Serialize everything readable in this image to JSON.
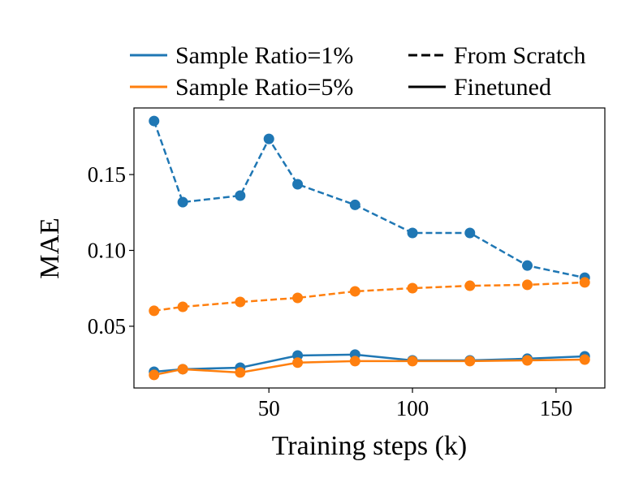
{
  "chart_data": {
    "type": "line",
    "x_label": "Training steps (k)",
    "y_label": "MAE",
    "xlim": [
      3,
      167
    ],
    "ylim": [
      0.0093,
      0.1939
    ],
    "xticks": [
      50,
      100,
      150
    ],
    "yticks": [
      {
        "value": 0.05,
        "label": "0.05"
      },
      {
        "value": 0.1,
        "label": "0.10"
      },
      {
        "value": 0.15,
        "label": "0.15"
      }
    ],
    "legend": [
      {
        "label": "Sample Ratio=1%",
        "color": "#1f77b4",
        "style": "solid"
      },
      {
        "label": "Sample Ratio=5%",
        "color": "#ff7f0e",
        "style": "solid"
      },
      {
        "label": "From Scratch",
        "color": "#000000",
        "style": "dashed"
      },
      {
        "label": "Finetuned",
        "color": "#000000",
        "style": "solid"
      }
    ],
    "series": [
      {
        "color": "#1f77b4",
        "style": "dashed",
        "x": [
          10,
          20,
          40,
          50,
          60,
          80,
          100,
          120,
          140,
          160
        ],
        "values": [
          0.1853,
          0.1318,
          0.1361,
          0.1735,
          0.1436,
          0.13,
          0.1115,
          0.1115,
          0.09,
          0.082
        ]
      },
      {
        "color": "#ff7f0e",
        "style": "dashed",
        "x": [
          10,
          20,
          40,
          60,
          80,
          100,
          120,
          140,
          160
        ],
        "values": [
          0.0602,
          0.0628,
          0.066,
          0.0687,
          0.073,
          0.0751,
          0.0767,
          0.0773,
          0.0789
        ]
      },
      {
        "color": "#1f77b4",
        "style": "solid",
        "x": [
          10,
          20,
          40,
          60,
          80,
          100,
          120,
          140,
          160
        ],
        "values": [
          0.02,
          0.0217,
          0.0227,
          0.0307,
          0.0313,
          0.0275,
          0.0275,
          0.0286,
          0.0302
        ]
      },
      {
        "color": "#ff7f0e",
        "style": "solid",
        "x": [
          10,
          20,
          40,
          60,
          80,
          100,
          120,
          140,
          160
        ],
        "values": [
          0.0179,
          0.0217,
          0.0195,
          0.026,
          0.027,
          0.027,
          0.027,
          0.0275,
          0.028
        ]
      }
    ]
  }
}
